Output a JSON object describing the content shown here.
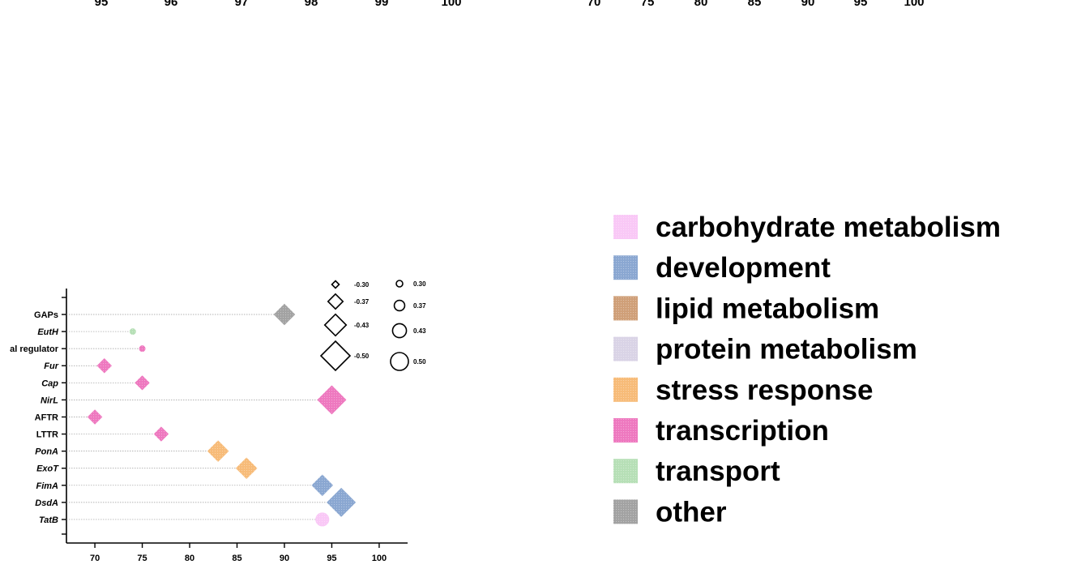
{
  "chart_data": [
    {
      "type": "scatter",
      "title": "",
      "xlabel": "",
      "ylabel": "",
      "xlim": [
        67,
        103
      ],
      "x_ticks": [
        "70",
        "75",
        "80",
        "85",
        "90",
        "95",
        "100"
      ],
      "categories": [
        {
          "label": "GAPs",
          "italic": false,
          "x": 90,
          "group": "other",
          "marker": "diamond",
          "size": -0.43
        },
        {
          "label": "EutH",
          "italic": true,
          "x": 74,
          "group": "transport",
          "marker": "circle",
          "size": 0.3
        },
        {
          "label": "al regulator",
          "italic": false,
          "x": 75,
          "group": "transcription",
          "marker": "circle",
          "size": 0.3
        },
        {
          "label": "Fur",
          "italic": true,
          "x": 71,
          "group": "transcription",
          "marker": "diamond",
          "size": -0.37
        },
        {
          "label": "Cap",
          "italic": true,
          "x": 75,
          "group": "transcription",
          "marker": "diamond",
          "size": -0.37
        },
        {
          "label": "NirL",
          "italic": true,
          "x": 95,
          "group": "transcription",
          "marker": "diamond",
          "size": -0.5
        },
        {
          "label": "AFTR",
          "italic": false,
          "x": 70,
          "group": "transcription",
          "marker": "diamond",
          "size": -0.37
        },
        {
          "label": "LTTR",
          "italic": false,
          "x": 77,
          "group": "transcription",
          "marker": "diamond",
          "size": -0.37
        },
        {
          "label": "PonA",
          "italic": true,
          "x": 83,
          "group": "stress response",
          "marker": "diamond",
          "size": -0.43
        },
        {
          "label": "ExoT",
          "italic": true,
          "x": 86,
          "group": "stress response",
          "marker": "diamond",
          "size": -0.43
        },
        {
          "label": "FimA",
          "italic": true,
          "x": 94,
          "group": "development",
          "marker": "diamond",
          "size": -0.43
        },
        {
          "label": "DsdA",
          "italic": true,
          "x": 96,
          "group": "development",
          "marker": "diamond",
          "size": -0.5
        },
        {
          "label": "TatB",
          "italic": true,
          "x": 94,
          "group": "carbohydrate metabolism",
          "marker": "circle",
          "size": 0.43
        }
      ],
      "size_legend": {
        "diamonds": [
          {
            "label": "-0.30",
            "value": -0.3
          },
          {
            "label": "-0.37",
            "value": -0.37
          },
          {
            "label": "-0.43",
            "value": -0.43
          },
          {
            "label": "-0.50",
            "value": -0.5
          }
        ],
        "circles": [
          {
            "label": "0.30",
            "value": 0.3
          },
          {
            "label": "0.37",
            "value": 0.37
          },
          {
            "label": "0.43",
            "value": 0.43
          },
          {
            "label": "0.50",
            "value": 0.5
          }
        ]
      },
      "grid": false
    },
    {
      "type": "scatter",
      "partial": "top-left, cropped",
      "x_ticks": [
        "95",
        "96",
        "97",
        "98",
        "99",
        "100"
      ]
    },
    {
      "type": "scatter",
      "partial": "top-right, cropped",
      "x_ticks": [
        "70",
        "75",
        "80",
        "85",
        "90",
        "95",
        "100"
      ]
    }
  ],
  "legend": {
    "placement": "right",
    "items": [
      {
        "label": "carbohydrate metabolism",
        "color": "#f9c8f6"
      },
      {
        "label": "development",
        "color": "#8aa7d1"
      },
      {
        "label": "lipid metabolism",
        "color": "#cf9f78"
      },
      {
        "label": "protein metabolism",
        "color": "#d9d3e6"
      },
      {
        "label": "stress response",
        "color": "#f7bb78"
      },
      {
        "label": "transcription",
        "color": "#ee78bf"
      },
      {
        "label": "transport",
        "color": "#b6dfb6"
      },
      {
        "label": "other",
        "color": "#a2a2a2"
      }
    ]
  }
}
